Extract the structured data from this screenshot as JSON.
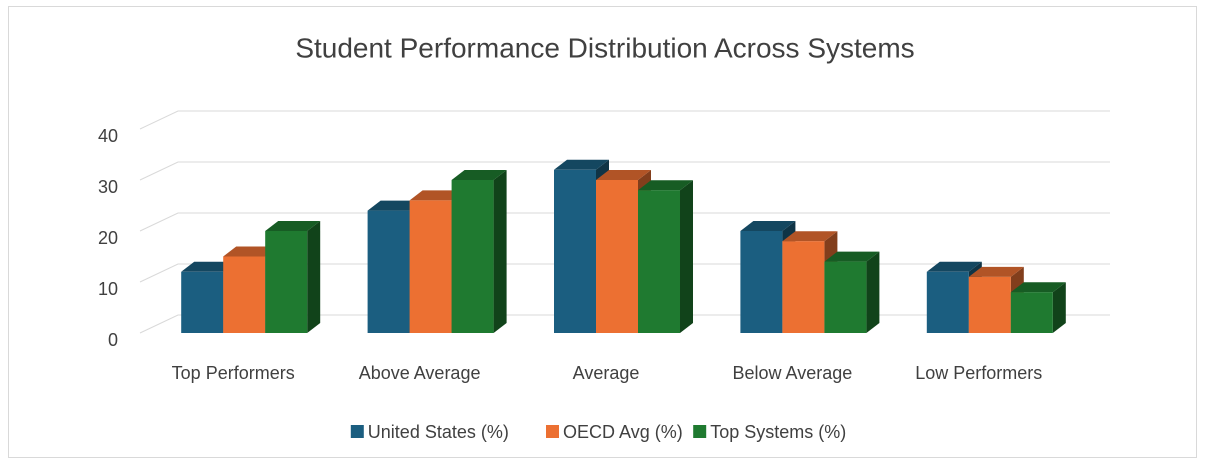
{
  "chart_data": {
    "type": "bar3d",
    "title": "Student Performance Distribution Across Systems",
    "categories": [
      "Top Performers",
      "Above Average",
      "Average",
      "Below Average",
      "Low Performers"
    ],
    "series": [
      {
        "name": "United States (%)",
        "color": "#1b5e80",
        "values": [
          12,
          24,
          32,
          20,
          12
        ]
      },
      {
        "name": "OECD Avg (%)",
        "color": "#ec7032",
        "values": [
          15,
          26,
          30,
          18,
          11
        ]
      },
      {
        "name": "Top Systems (%)",
        "color": "#1f7a30",
        "values": [
          20,
          30,
          28,
          14,
          8
        ]
      }
    ],
    "ylim": [
      0,
      40
    ],
    "yticks": [
      0,
      10,
      20,
      30,
      40
    ],
    "grid": true,
    "legend": "bottom"
  }
}
